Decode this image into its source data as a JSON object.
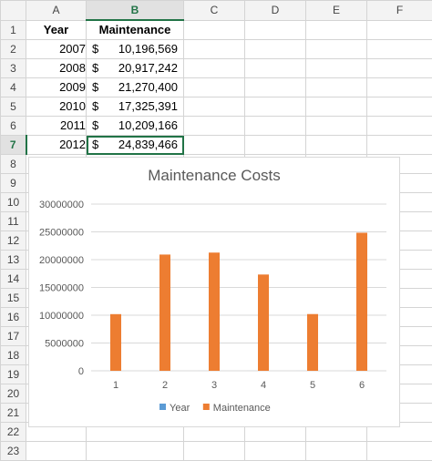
{
  "sheet": {
    "columns": [
      "A",
      "B",
      "C",
      "D",
      "E",
      "F"
    ],
    "active_column": "B",
    "active_row": "7",
    "rows": [
      "1",
      "2",
      "3",
      "4",
      "5",
      "6",
      "7",
      "8",
      "9",
      "10",
      "11",
      "12",
      "13",
      "14",
      "15",
      "16",
      "17",
      "18",
      "19",
      "20",
      "21",
      "22",
      "23"
    ],
    "headers": {
      "year": "Year",
      "maintenance": "Maintenance"
    },
    "currency_symbol": "$",
    "data": [
      {
        "year": "2007",
        "amount": "10,196,569"
      },
      {
        "year": "2008",
        "amount": "20,917,242"
      },
      {
        "year": "2009",
        "amount": "21,270,400"
      },
      {
        "year": "2010",
        "amount": "17,325,391"
      },
      {
        "year": "2011",
        "amount": "10,209,166"
      },
      {
        "year": "2012",
        "amount": "24,839,466"
      }
    ]
  },
  "chart_data": {
    "type": "bar",
    "title": "Maintenance Costs",
    "categories": [
      "1",
      "2",
      "3",
      "4",
      "5",
      "6"
    ],
    "yticks": [
      "0",
      "5000000",
      "10000000",
      "15000000",
      "20000000",
      "25000000",
      "30000000"
    ],
    "ylim": [
      0,
      30000000
    ],
    "series": [
      {
        "name": "Year",
        "values": [
          2007,
          2008,
          2009,
          2010,
          2011,
          2012
        ],
        "color": "#5b9bd5"
      },
      {
        "name": "Maintenance",
        "values": [
          10196569,
          20917242,
          21270400,
          17325391,
          10209166,
          24839466
        ],
        "color": "#ed7d31"
      }
    ],
    "legend_position": "bottom",
    "grid": true
  }
}
